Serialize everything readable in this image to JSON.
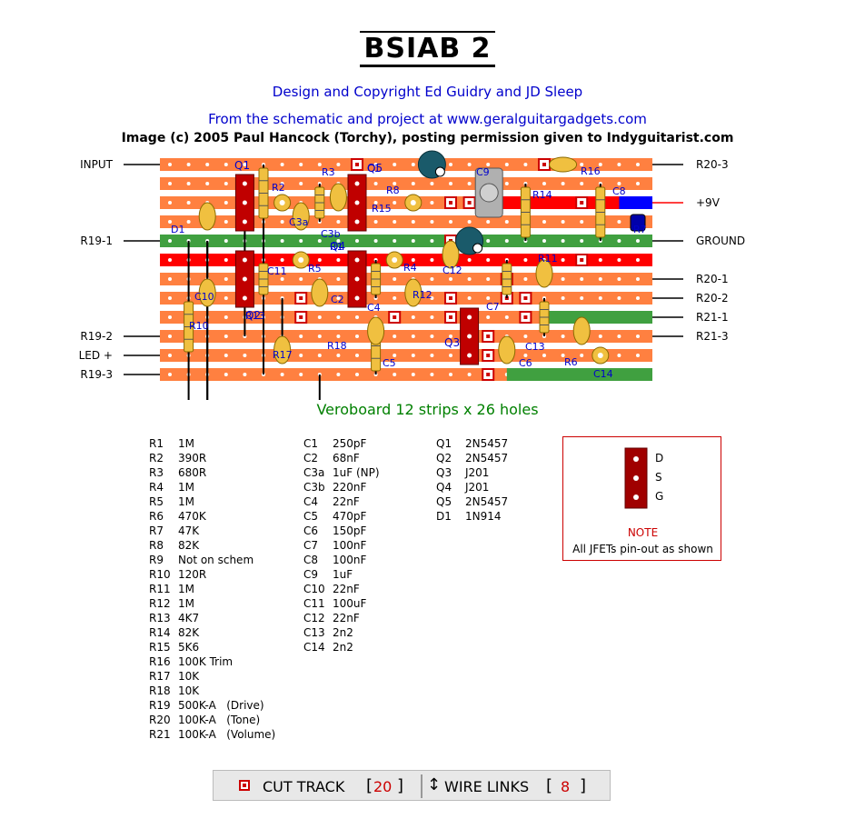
{
  "header": {
    "title": "BSIAB 2",
    "copyright": "Design and Copyright Ed Guidry and JD Sleep",
    "from": "From the schematic and project at www.geralguitargadgets.com",
    "image_credit": "Image (c) 2005 Paul Hancock (Torchy), posting permission given to Indyguitarist.com"
  },
  "left_labels": [
    "INPUT",
    "R19-1",
    "R19-2",
    "LED +",
    "R19-3"
  ],
  "right_labels": [
    "R20-3",
    "+9V",
    "GROUND",
    "R20-1",
    "R20-2",
    "R21-1",
    "R21-3"
  ],
  "component_labels": [
    "Q1",
    "R2",
    "R3",
    "C1",
    "Q5",
    "C9",
    "R16",
    "C8",
    "R8",
    "R15",
    "R14",
    "R7",
    "D1",
    "C3a",
    "C3b",
    "R1",
    "Q4",
    "C12",
    "C11",
    "R5",
    "R4",
    "R11",
    "C10",
    "C2",
    "C4",
    "R12",
    "C7",
    "R10",
    "R13",
    "Q2",
    "Q3",
    "R17",
    "C5",
    "C6",
    "R6",
    "C14",
    "C13",
    "R18"
  ],
  "board": {
    "title": "Veroboard 12 strips x 26 holes",
    "strips": 12,
    "holes": 26
  },
  "resistors": [
    [
      "R1",
      "1M"
    ],
    [
      "R2",
      "390R"
    ],
    [
      "R3",
      "680R"
    ],
    [
      "R4",
      "1M"
    ],
    [
      "R5",
      "1M"
    ],
    [
      "R6",
      "470K"
    ],
    [
      "R7",
      "47K"
    ],
    [
      "R8",
      "82K"
    ],
    [
      "R9",
      "Not on schem"
    ],
    [
      "R10",
      "120R"
    ],
    [
      "R11",
      "1M"
    ],
    [
      "R12",
      "1M"
    ],
    [
      "R13",
      "4K7"
    ],
    [
      "R14",
      "82K"
    ],
    [
      "R15",
      "5K6"
    ],
    [
      "R16",
      "100K Trim"
    ],
    [
      "R17",
      "10K"
    ],
    [
      "R18",
      "10K"
    ],
    [
      "R19",
      "500K-A   (Drive)"
    ],
    [
      "R20",
      "100K-A   (Tone)"
    ],
    [
      "R21",
      "100K-A   (Volume)"
    ]
  ],
  "capacitors": [
    [
      "C1",
      "250pF"
    ],
    [
      "C2",
      "68nF"
    ],
    [
      "C3a",
      "1uF (NP)"
    ],
    [
      "C3b",
      "220nF"
    ],
    [
      "C4",
      "22nF"
    ],
    [
      "C5",
      "470pF"
    ],
    [
      "C6",
      "150pF"
    ],
    [
      "C7",
      "100nF"
    ],
    [
      "C8",
      "100nF"
    ],
    [
      "C9",
      "1uF"
    ],
    [
      "C10",
      "22nF"
    ],
    [
      "C11",
      "100uF"
    ],
    [
      "C12",
      "22nF"
    ],
    [
      "C13",
      "2n2"
    ],
    [
      "C14",
      "2n2"
    ]
  ],
  "semis": [
    [
      "Q1",
      "2N5457"
    ],
    [
      "Q2",
      "2N5457"
    ],
    [
      "Q3",
      "J201"
    ],
    [
      "Q4",
      "J201"
    ],
    [
      "Q5",
      "2N5457"
    ],
    [
      "D1",
      "1N914"
    ]
  ],
  "note": {
    "pins": [
      "D",
      "S",
      "G"
    ],
    "title": "NOTE",
    "text": "All JFETs pin-out as shown"
  },
  "legend": {
    "cut_label": "CUT TRACK",
    "cut_count": "20",
    "wire_label": "WIRE LINKS",
    "wire_count": "8"
  },
  "colors": {
    "strip": "#ff8040",
    "ground": "#40a040",
    "supply": "#ff0000",
    "plus9": "#0000ff",
    "component": "#f0c040",
    "transistor": "#c00000",
    "cut": "#cc0000"
  }
}
